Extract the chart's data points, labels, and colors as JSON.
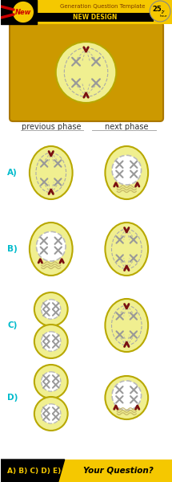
{
  "bg_color": "#ffffff",
  "yellow_cell": "#f0ef90",
  "cell_border": "#b8a800",
  "gold_bg": "#cc9900",
  "gold_bg2": "#e8b800",
  "chr_color": "#aaaaaa",
  "centromere_color": "#7a1010",
  "spindle_color": "#aaaaaa",
  "nuclear_fill": "#ffffff",
  "nuclear_border": "#bbbbbb",
  "title_yellow": "#f5c800",
  "title_main": "Generation Question Template",
  "title_sub": "NEW DESIGN",
  "timer_text": "25.",
  "rows": [
    "A)",
    "B)",
    "C)",
    "D)"
  ],
  "col_labels": [
    "previous phase",
    "next phase"
  ],
  "bottom_options": "A) B) C) D) E)",
  "bottom_question": "Your Question?",
  "label_color": "#00bbcc"
}
